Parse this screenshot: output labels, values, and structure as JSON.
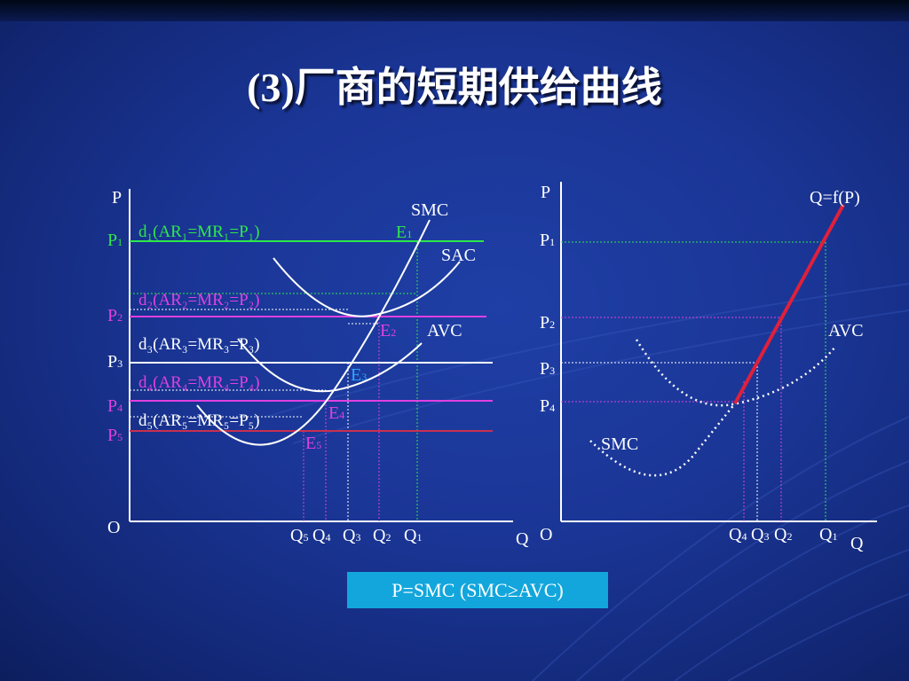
{
  "title": "(3)厂商的短期供给曲线",
  "formula": "P=SMC  (SMC≥AVC)",
  "left_panel": {
    "axis_p": "P",
    "axis_q": "Q",
    "origin": "O",
    "prices": [
      {
        "base": "P",
        "sub": "1",
        "color": "#2ee84a"
      },
      {
        "base": "P",
        "sub": "2",
        "color": "#e040e0"
      },
      {
        "base": "P",
        "sub": "3",
        "color": "#ffffff"
      },
      {
        "base": "P",
        "sub": "4",
        "color": "#e040e0"
      },
      {
        "base": "P",
        "sub": "5",
        "color": "#c83050"
      }
    ],
    "demand_lines": [
      {
        "text": "d₁(AR₁=MR₁=P₁)",
        "color": "#2ee84a"
      },
      {
        "text": "d₂(AR₂=MR₂=P₂)",
        "color": "#e040e0"
      },
      {
        "text": "d₃(AR₃=MR₃=P₃)",
        "color": "#ffffff"
      },
      {
        "text": "d₄(AR₄=MR₄=P₄)",
        "color": "#e040e0"
      },
      {
        "text": "d₅(AR₅=MR₅=P₅)",
        "color": "#ffffff"
      }
    ],
    "equilibria": [
      {
        "base": "E",
        "sub": "1",
        "color": "#2ee84a"
      },
      {
        "base": "E",
        "sub": "2",
        "color": "#e040e0"
      },
      {
        "base": "E",
        "sub": "3",
        "color": "#2ea8ff"
      },
      {
        "base": "E",
        "sub": "4",
        "color": "#e040e0"
      },
      {
        "base": "E",
        "sub": "5",
        "color": "#e040e0"
      }
    ],
    "curves": {
      "smc": "SMC",
      "sac": "SAC",
      "avc": "AVC"
    },
    "quantities": [
      {
        "base": "Q",
        "sub": "5"
      },
      {
        "base": "Q",
        "sub": "4"
      },
      {
        "base": "Q",
        "sub": "3"
      },
      {
        "base": "Q",
        "sub": "2"
      },
      {
        "base": "Q",
        "sub": "1"
      }
    ]
  },
  "right_panel": {
    "axis_p": "P",
    "axis_q": "Q",
    "origin": "O",
    "supply_label": "Q=f(P)",
    "supply_color": "#e0203a",
    "prices": [
      {
        "base": "P",
        "sub": "1"
      },
      {
        "base": "P",
        "sub": "2"
      },
      {
        "base": "P",
        "sub": "3"
      },
      {
        "base": "P",
        "sub": "4"
      }
    ],
    "curves": {
      "avc": "AVC",
      "smc": "SMC"
    },
    "quantities": [
      {
        "base": "Q",
        "sub": "4"
      },
      {
        "base": "Q",
        "sub": "3"
      },
      {
        "base": "Q",
        "sub": "2"
      },
      {
        "base": "Q",
        "sub": "1"
      }
    ]
  }
}
